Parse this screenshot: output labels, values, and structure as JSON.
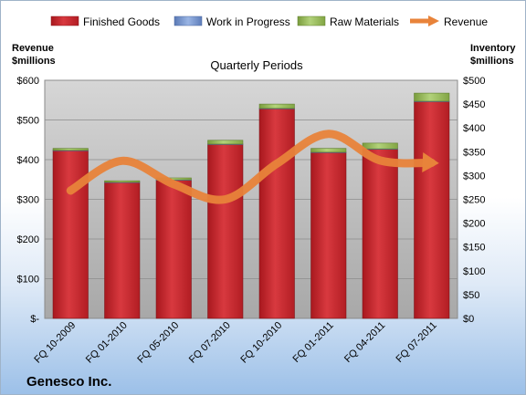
{
  "company": "Genesco Inc.",
  "colors": {
    "finished_goods": "#c0272d",
    "work_in_progress": "#6f8fc9",
    "raw_materials": "#8fb350",
    "revenue": "#e8833a"
  },
  "chart_data": {
    "type": "bar",
    "stacked": true,
    "title": "Quarterly Periods",
    "left_axis_title": [
      "Revenue",
      "$millions"
    ],
    "right_axis_title": [
      "Inventory",
      "$millions"
    ],
    "categories": [
      "FQ 10-2009",
      "FQ 01-2010",
      "FQ 05-2010",
      "FQ 07-2010",
      "FQ 10-2010",
      "FQ 01-2011",
      "FQ 04-2011",
      "FQ 07-2011"
    ],
    "left_ticks": [
      "$-",
      "$100",
      "$200",
      "$300",
      "$400",
      "$500",
      "$600"
    ],
    "right_ticks": [
      "$0",
      "$50",
      "$100",
      "$150",
      "$200",
      "$250",
      "$300",
      "$350",
      "$400",
      "$450",
      "$500"
    ],
    "left_ylim": [
      0,
      600
    ],
    "right_ylim": [
      0,
      500
    ],
    "grid": true,
    "legend_position": "top",
    "series": [
      {
        "name": "Finished Goods",
        "axis": "right",
        "kind": "bar",
        "values": [
          352,
          285,
          290,
          365,
          440,
          348,
          355,
          455
        ]
      },
      {
        "name": "Work in Progress",
        "axis": "right",
        "kind": "bar",
        "values": [
          1,
          1,
          1,
          1,
          1,
          1,
          1,
          1
        ]
      },
      {
        "name": "Raw Materials",
        "axis": "right",
        "kind": "bar",
        "values": [
          4,
          3,
          4,
          8,
          9,
          8,
          12,
          17
        ]
      },
      {
        "name": "Revenue",
        "axis": "left",
        "kind": "line",
        "values": [
          322,
          397,
          338,
          300,
          390,
          465,
          398,
          392
        ]
      }
    ]
  }
}
